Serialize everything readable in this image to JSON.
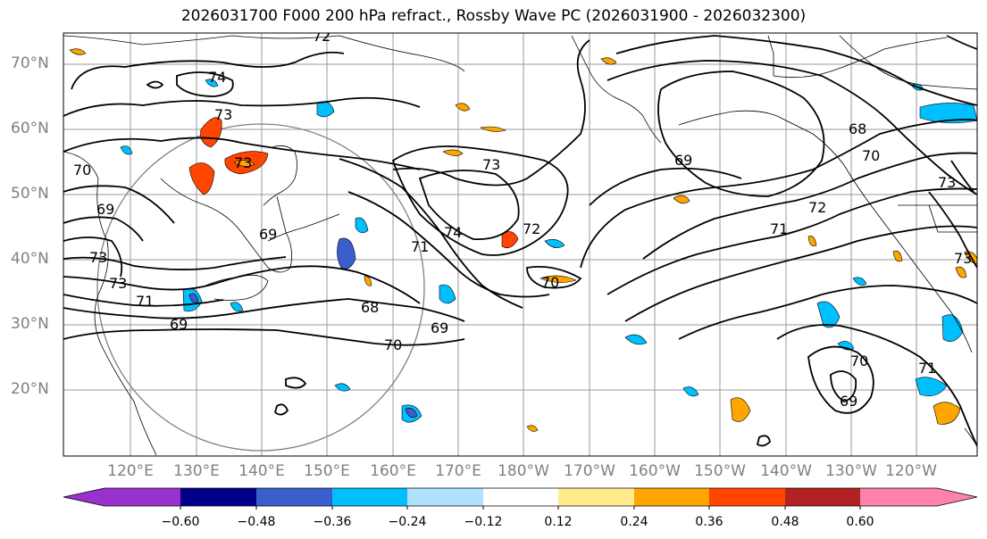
{
  "title": "2026031700 F000 200 hPa refract., Rossby Wave PC (2026031900 - 2026032300)",
  "lat_labels": [
    "70°N",
    "60°N",
    "50°N",
    "40°N",
    "30°N",
    "20°N"
  ],
  "lon_labels": [
    "120°E",
    "130°E",
    "140°E",
    "150°E",
    "160°E",
    "170°E",
    "180°W",
    "170°W",
    "160°W",
    "150°W",
    "140°W",
    "130°W",
    "120°W"
  ],
  "colorbar": {
    "ticks": [
      "−0.60",
      "−0.48",
      "−0.36",
      "−0.24",
      "−0.12",
      "0.12",
      "0.24",
      "0.36",
      "0.48",
      "0.60"
    ],
    "colors": [
      "#9932cc",
      "#00008b",
      "#3a5fcd",
      "#00bfff",
      "#b0e2ff",
      "#ffffff",
      "#ffec8b",
      "#ffa500",
      "#ff4500",
      "#b22222",
      "#ff82ab"
    ]
  },
  "contour_labels": [
    "72",
    "74",
    "73",
    "73",
    "70",
    "69",
    "69",
    "73",
    "73",
    "71",
    "69",
    "68",
    "70",
    "69",
    "74",
    "71",
    "72",
    "70",
    "68",
    "69",
    "70",
    "72",
    "71",
    "73",
    "73",
    "73",
    "70",
    "69",
    "71"
  ]
}
